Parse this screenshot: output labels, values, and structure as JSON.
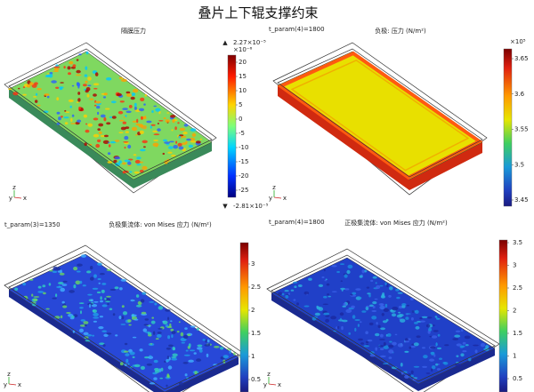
{
  "title": "叠片上下辊支撑约束",
  "axis_labels": [
    "z",
    "y",
    "x"
  ],
  "panels": [
    {
      "plot_title": "隔膜压力",
      "max_label": "2.27×10⁻⁵",
      "min_label": "-2.81×10⁻⁵",
      "scale": "×10⁻⁶",
      "ticks": [
        20,
        15,
        10,
        5,
        0,
        -5,
        -10,
        -15,
        -20,
        -25
      ]
    },
    {
      "time": "t_param(4)=1800",
      "plot_title": "负极: 压力 (N/m²)",
      "scale": "×10⁵",
      "ticks": [
        3.65,
        3.6,
        3.55,
        3.5,
        3.45
      ]
    },
    {
      "time": "t_param(3)=1350",
      "plot_title": "负极集流体: von Mises 应力 (N/m²)",
      "ticks": [
        3,
        2.5,
        2,
        1.5,
        1,
        0.5
      ]
    },
    {
      "time": "t_param(4)=1800",
      "plot_title": "正极集流体: von Mises 应力 (N/m²)",
      "ticks": [
        3.5,
        3,
        2.5,
        2,
        1.5,
        1,
        0.5
      ]
    }
  ]
}
